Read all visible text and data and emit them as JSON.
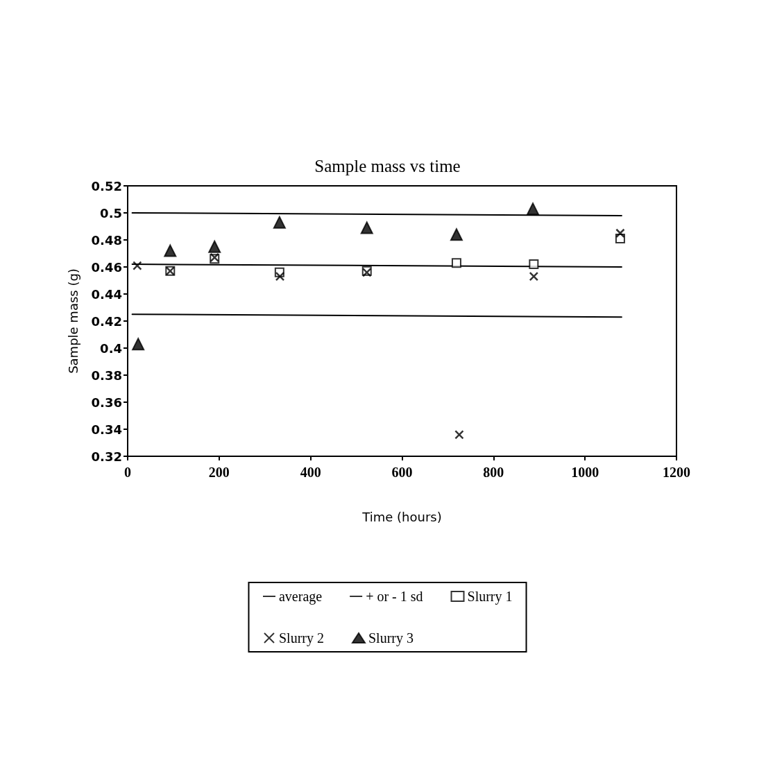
{
  "chart_data": {
    "type": "scatter",
    "title": "Sample mass vs time",
    "xlabel": "Time (hours)",
    "ylabel": "Sample mass (g)",
    "xlim": [
      0,
      1200
    ],
    "xticks": [
      0,
      200,
      400,
      600,
      800,
      1000,
      1200
    ],
    "ylim": [
      0.32,
      0.52
    ],
    "yticks": [
      0.32,
      0.34,
      0.36,
      0.38,
      0.4,
      0.42,
      0.44,
      0.46,
      0.48,
      0.5,
      0.52
    ],
    "legend": "bottom",
    "series": [
      {
        "name": "average",
        "type": "line",
        "marker": "none",
        "line_style": "solid",
        "color": "#000000",
        "x": [
          10,
          1080
        ],
        "values": [
          0.462,
          0.46
        ]
      },
      {
        "name": "+ or - 1 sd",
        "type": "line",
        "marker": "none",
        "line_style": "solid",
        "color": "#000000",
        "x": [
          10,
          1080
        ],
        "values": [
          0.5,
          0.498
        ]
      },
      {
        "type": "line",
        "marker": "none",
        "line_style": "solid",
        "color": "#000000",
        "x": [
          10,
          1080
        ],
        "values": [
          0.425,
          0.423
        ]
      },
      {
        "name": "Slurry 1",
        "marker": "square",
        "color": "#000000",
        "x": [
          93,
          190,
          332,
          523,
          719,
          888,
          1077
        ],
        "values": [
          0.457,
          0.466,
          0.456,
          0.457,
          0.463,
          0.462,
          0.481
        ]
      },
      {
        "name": "Slurry 2",
        "marker": "cross",
        "color": "#000000",
        "x": [
          21,
          93,
          190,
          333,
          523,
          725,
          888,
          1077
        ],
        "values": [
          0.461,
          0.457,
          0.467,
          0.453,
          0.456,
          0.336,
          0.453,
          0.485
        ]
      },
      {
        "name": "Slurry 3",
        "marker": "triangle",
        "color": "#000000",
        "x": [
          23,
          93,
          190,
          332,
          523,
          719,
          886
        ],
        "values": [
          0.403,
          0.472,
          0.475,
          0.493,
          0.489,
          0.484,
          0.503
        ]
      }
    ]
  }
}
